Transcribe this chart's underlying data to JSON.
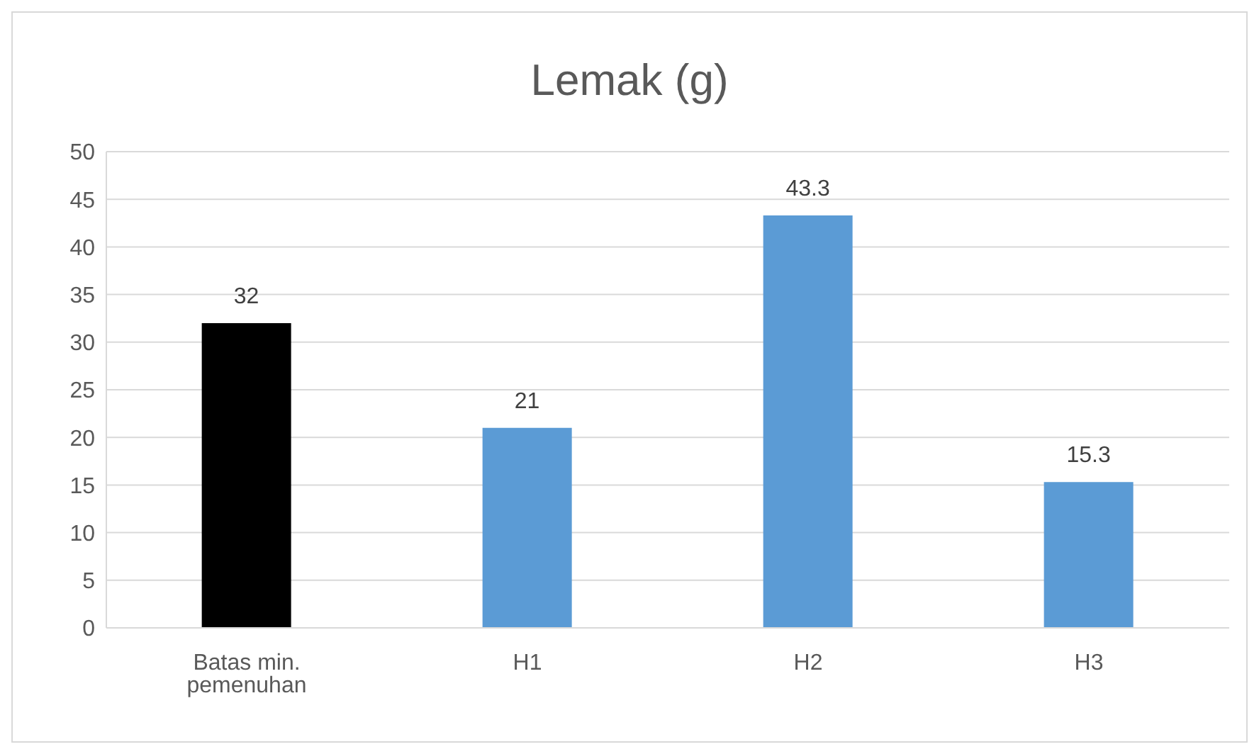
{
  "chart_data": {
    "type": "bar",
    "title": "Lemak (g)",
    "categories": [
      "Batas min. pemenuhan",
      "H1",
      "H2",
      "H3"
    ],
    "values": [
      32,
      21,
      43.3,
      15.3
    ],
    "colors": [
      "#000000",
      "#5b9bd5",
      "#5b9bd5",
      "#5b9bd5"
    ],
    "ylim": [
      0,
      50
    ],
    "yticks": [
      0,
      5,
      10,
      15,
      20,
      25,
      30,
      35,
      40,
      45,
      50
    ],
    "grid": "y",
    "data_labels": true,
    "legend": false
  }
}
